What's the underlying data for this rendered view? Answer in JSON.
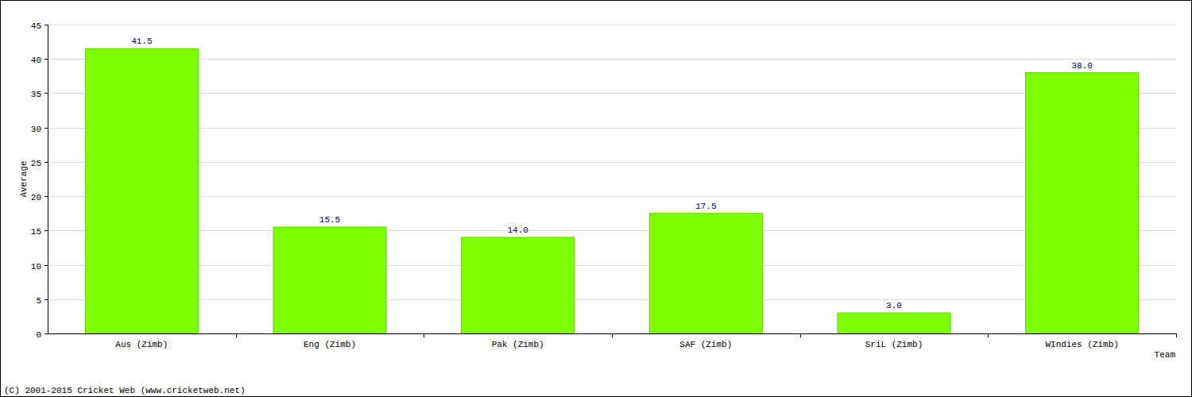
{
  "chart_data": {
    "type": "bar",
    "categories": [
      "Aus (Zimb)",
      "Eng (Zimb)",
      "Pak (Zimb)",
      "SAF (Zimb)",
      "SriL (Zimb)",
      "WIndies (Zimb)"
    ],
    "values": [
      41.5,
      15.5,
      14,
      17.5,
      3,
      38
    ],
    "value_labels": [
      "41.5",
      "15.5",
      "14.0",
      "17.5",
      "3.0",
      "38.0"
    ],
    "data_labels": true,
    "color": "#7fff00",
    "y_label": "Average",
    "x_label": "Team",
    "annotations": [
      "(C) 2001-2015 Cricket Web (www.cricketweb.net)"
    ],
    "ylim": [
      0,
      45
    ],
    "yticks": [
      0,
      5,
      10,
      15,
      20,
      25,
      30,
      35,
      40,
      45
    ],
    "grid": true
  }
}
